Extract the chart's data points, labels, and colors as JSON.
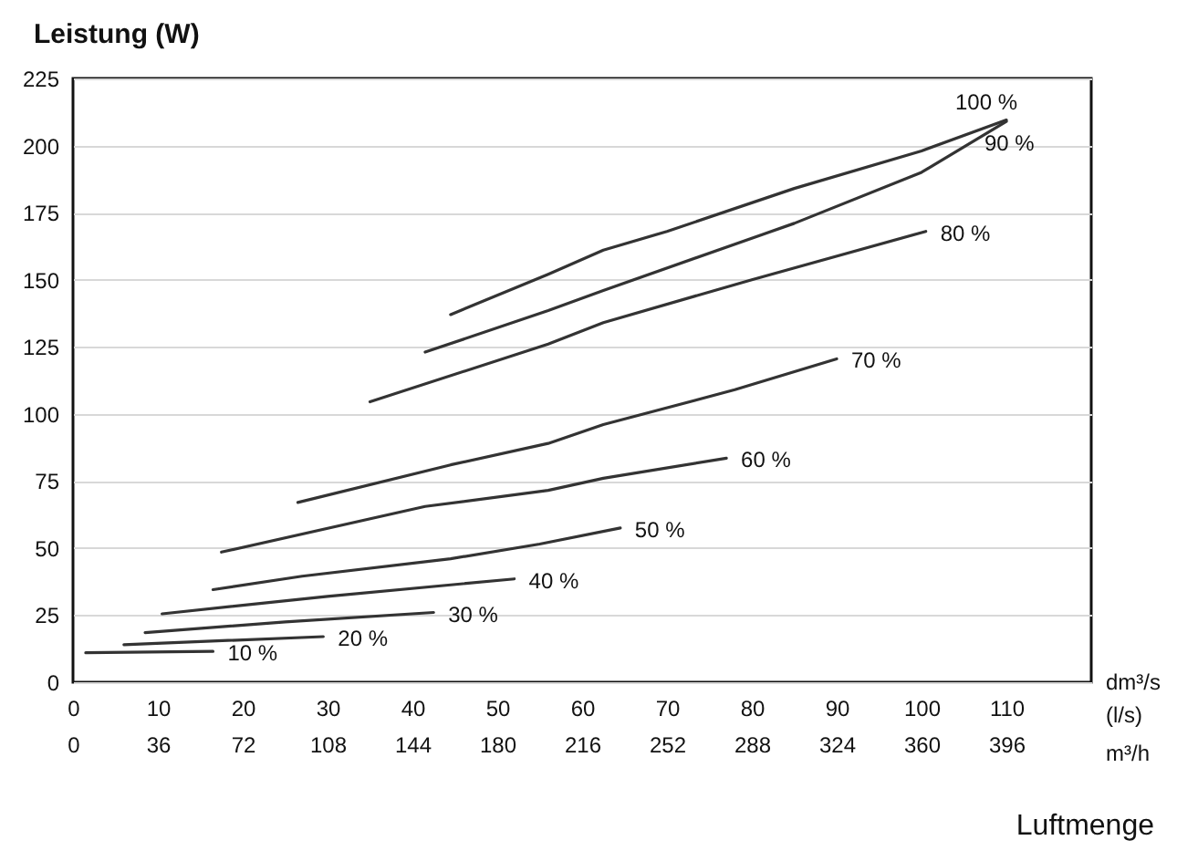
{
  "chart_data": {
    "type": "line",
    "ylabel": "Leistung (W)",
    "xlabel": "Luftmenge",
    "x2label": "m³/h",
    "annotations": [
      "dm³/s",
      "(l/s)"
    ],
    "xlim": [
      0,
      120
    ],
    "xticks": [
      0,
      10,
      20,
      30,
      40,
      50,
      60,
      70,
      80,
      90,
      100,
      110
    ],
    "x2lim": [
      0,
      432
    ],
    "x2ticks": [
      0,
      36,
      72,
      108,
      144,
      180,
      216,
      252,
      288,
      324,
      360,
      396
    ],
    "ylim": [
      0,
      225
    ],
    "yticks": [
      0,
      25,
      50,
      75,
      100,
      125,
      150,
      175,
      200,
      225
    ],
    "grid": "y",
    "series": [
      {
        "name": "100 %",
        "color": "#333333",
        "x": [
          44.5,
          56,
          62.5,
          70,
          85,
          100,
          110
        ],
        "values": [
          137,
          152,
          161,
          168,
          184,
          198,
          209.5
        ]
      },
      {
        "name": "90 %",
        "color": "#333333",
        "x": [
          41.5,
          56,
          62.5,
          85,
          100,
          110
        ],
        "values": [
          123,
          138.5,
          146,
          171,
          190,
          209
        ]
      },
      {
        "name": "80 %",
        "color": "#333333",
        "x": [
          35,
          56,
          62.5,
          80,
          100.5
        ],
        "values": [
          104.5,
          126,
          134,
          150,
          168
        ]
      },
      {
        "name": "70 %",
        "color": "#333333",
        "x": [
          26.5,
          44.5,
          56,
          62.5,
          78,
          90
        ],
        "values": [
          67,
          81,
          89,
          96,
          109,
          120.5
        ]
      },
      {
        "name": "60 %",
        "color": "#333333",
        "x": [
          17.5,
          41.5,
          56,
          62.5,
          77
        ],
        "values": [
          48.5,
          65.5,
          71.5,
          76,
          83.5
        ]
      },
      {
        "name": "50 %",
        "color": "#333333",
        "x": [
          16.5,
          27,
          44.5,
          55,
          64.5
        ],
        "values": [
          34.5,
          39.5,
          46,
          51.5,
          57.5
        ]
      },
      {
        "name": "40 %",
        "color": "#333333",
        "x": [
          10.5,
          30,
          52
        ],
        "values": [
          25.5,
          32,
          38.5
        ]
      },
      {
        "name": "30 %",
        "color": "#333333",
        "x": [
          8.5,
          25,
          42.5
        ],
        "values": [
          18.5,
          22.5,
          26
        ]
      },
      {
        "name": "20 %",
        "color": "#333333",
        "x": [
          6,
          29.5
        ],
        "values": [
          14,
          17
        ]
      },
      {
        "name": "10 %",
        "color": "#333333",
        "x": [
          1.5,
          16.5
        ],
        "values": [
          11,
          11.5
        ]
      }
    ]
  }
}
